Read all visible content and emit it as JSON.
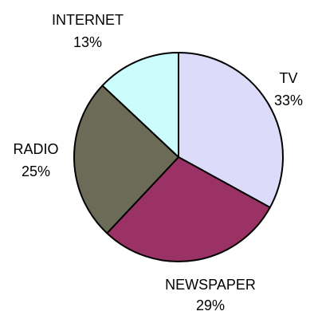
{
  "chart_data": {
    "type": "pie",
    "title": "",
    "categories": [
      "TV",
      "NEWSPAPER",
      "RADIO",
      "INTERNET"
    ],
    "values": [
      33,
      29,
      25,
      13
    ],
    "value_labels": [
      "33%",
      "29%",
      "25%",
      "13%"
    ],
    "colors": [
      "#dcdcfa",
      "#9b3266",
      "#6b6b57",
      "#ccfcfc"
    ],
    "start_angle_deg": 0,
    "direction": "clockwise",
    "legend": "none",
    "grid": false
  }
}
